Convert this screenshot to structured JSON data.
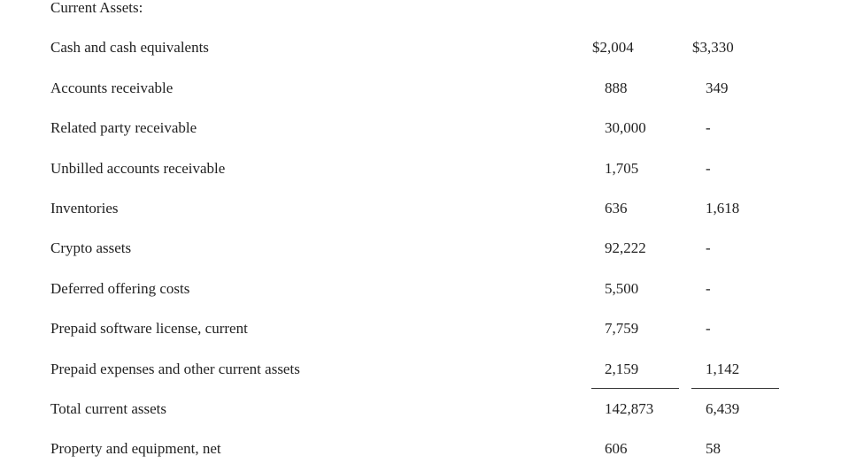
{
  "section_header": "Current Assets:",
  "rows": [
    {
      "label": "Cash and cash equivalents",
      "col1": "$2,004",
      "col2": "$3,330"
    },
    {
      "label": "Accounts receivable",
      "col1": "888",
      "col2": "349"
    },
    {
      "label": "Related party receivable",
      "col1": "30,000",
      "col2": "-"
    },
    {
      "label": "Unbilled accounts receivable",
      "col1": "1,705",
      "col2": "-"
    },
    {
      "label": "Inventories",
      "col1": "636",
      "col2": "1,618"
    },
    {
      "label": "Crypto assets",
      "col1": "92,222",
      "col2": "-"
    },
    {
      "label": "Deferred offering costs",
      "col1": "5,500",
      "col2": "-"
    },
    {
      "label": "Prepaid software license, current",
      "col1": "7,759",
      "col2": "-"
    },
    {
      "label": "Prepaid expenses and other current assets",
      "col1": "2,159",
      "col2": "1,142"
    },
    {
      "label": "Total current assets",
      "col1": "142,873",
      "col2": "6,439"
    },
    {
      "label": "Property and equipment, net",
      "col1": "606",
      "col2": "58"
    }
  ]
}
